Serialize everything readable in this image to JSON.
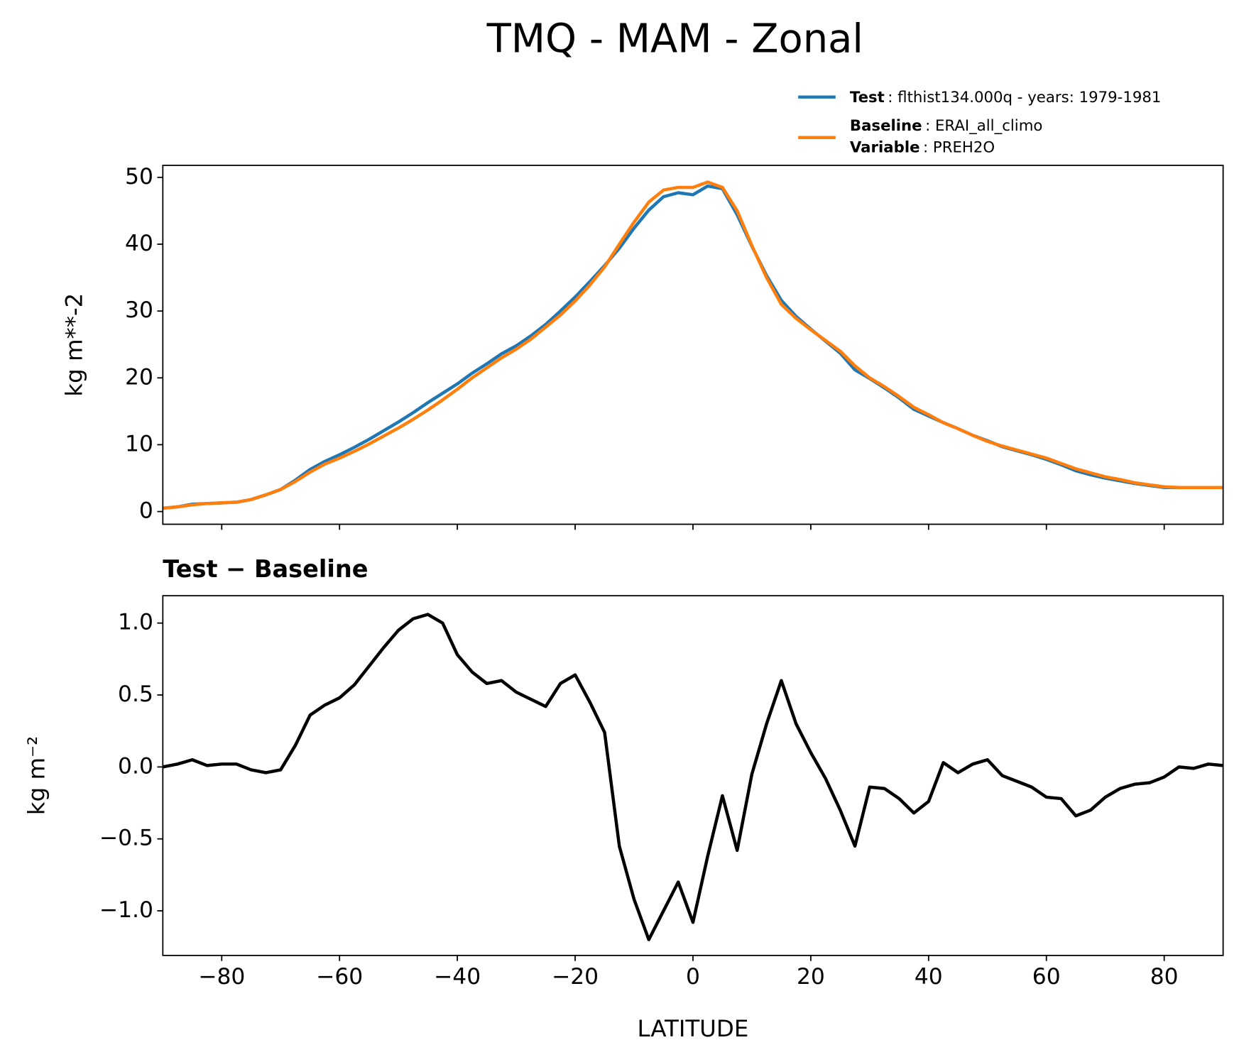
{
  "title": "TMQ - MAM - Zonal",
  "chart_data": [
    {
      "type": "line",
      "ylabel": "kg m**-2",
      "x": [
        -90,
        -87.5,
        -85,
        -82.5,
        -80,
        -77.5,
        -75,
        -72.5,
        -70,
        -67.5,
        -65,
        -62.5,
        -60,
        -57.5,
        -55,
        -52.5,
        -50,
        -47.5,
        -45,
        -42.5,
        -40,
        -37.5,
        -35,
        -32.5,
        -30,
        -27.5,
        -25,
        -22.5,
        -20,
        -17.5,
        -15,
        -12.5,
        -10,
        -7.5,
        -5,
        -2.5,
        0,
        2.5,
        5,
        7.5,
        10,
        12.5,
        15,
        17.5,
        20,
        22.5,
        25,
        27.5,
        30,
        32.5,
        35,
        37.5,
        40,
        42.5,
        45,
        47.5,
        50,
        52.5,
        55,
        57.5,
        60,
        62.5,
        65,
        67.5,
        70,
        72.5,
        75,
        77.5,
        80,
        82.5,
        85,
        87.5,
        90
      ],
      "series": [
        {
          "name": "Test",
          "description": ": flthist134.000q - years: 1979-1981",
          "color": "#1f77b4",
          "values": [
            0.5,
            0.7,
            1.1,
            1.2,
            1.3,
            1.4,
            1.8,
            2.5,
            3.3,
            4.7,
            6.3,
            7.5,
            8.5,
            9.6,
            10.8,
            12.1,
            13.4,
            14.8,
            16.3,
            17.7,
            19.1,
            20.7,
            22.1,
            23.6,
            24.8,
            26.3,
            28.0,
            30.0,
            32.1,
            34.4,
            36.8,
            39.4,
            42.4,
            45.1,
            47.1,
            47.7,
            47.4,
            48.7,
            48.3,
            44.4,
            39.7,
            35.3,
            31.6,
            29.2,
            27.3,
            25.5,
            23.7,
            21.2,
            19.9,
            18.5,
            17.0,
            15.3,
            14.3,
            13.3,
            12.4,
            11.4,
            10.6,
            9.7,
            9.1,
            8.5,
            7.8,
            7.0,
            6.1,
            5.5,
            5.0,
            4.6,
            4.2,
            3.9,
            3.6,
            3.6,
            3.6,
            3.6,
            3.6
          ]
        },
        {
          "name": "Baseline",
          "description": ": ERAI_all_climo",
          "color": "#ff7f0e",
          "values": [
            0.5,
            0.7,
            1.0,
            1.2,
            1.3,
            1.4,
            1.8,
            2.5,
            3.3,
            4.5,
            5.9,
            7.1,
            8.0,
            9.0,
            10.1,
            11.3,
            12.5,
            13.8,
            15.2,
            16.7,
            18.3,
            20.0,
            21.5,
            23.0,
            24.3,
            25.8,
            27.6,
            29.4,
            31.5,
            33.9,
            36.6,
            40.0,
            43.3,
            46.3,
            48.1,
            48.5,
            48.5,
            49.3,
            48.5,
            45.0,
            39.8,
            35.0,
            31.0,
            28.9,
            27.2,
            25.6,
            24.0,
            21.8,
            20.0,
            18.7,
            17.2,
            15.6,
            14.5,
            13.3,
            12.4,
            11.4,
            10.5,
            9.8,
            9.2,
            8.6,
            8.0,
            7.2,
            6.4,
            5.8,
            5.2,
            4.8,
            4.3,
            4.0,
            3.7,
            3.6,
            3.6,
            3.6,
            3.6
          ]
        }
      ],
      "variable_label": "Variable",
      "variable": ": PREH2O",
      "legend": "upper right",
      "xlim": [
        -90,
        90
      ],
      "xticks": [
        -80,
        -60,
        -40,
        -20,
        0,
        20,
        40,
        60,
        80
      ],
      "ylim": [
        -1.9,
        51.8
      ],
      "yticks": [
        0,
        10,
        20,
        30,
        40,
        50
      ]
    },
    {
      "type": "line",
      "title": "Test − Baseline",
      "ylabel": "kg m⁻²",
      "xlabel": "LATITUDE",
      "x": [
        -90,
        -87.5,
        -85,
        -82.5,
        -80,
        -77.5,
        -75,
        -72.5,
        -70,
        -67.5,
        -65,
        -62.5,
        -60,
        -57.5,
        -55,
        -52.5,
        -50,
        -47.5,
        -45,
        -42.5,
        -40,
        -37.5,
        -35,
        -32.5,
        -30,
        -27.5,
        -25,
        -22.5,
        -20,
        -17.5,
        -15,
        -12.5,
        -10,
        -7.5,
        -5,
        -2.5,
        0,
        2.5,
        5,
        7.5,
        10,
        12.5,
        15,
        17.5,
        20,
        22.5,
        25,
        27.5,
        30,
        32.5,
        35,
        37.5,
        40,
        42.5,
        45,
        47.5,
        50,
        52.5,
        55,
        57.5,
        60,
        62.5,
        65,
        67.5,
        70,
        72.5,
        75,
        77.5,
        80,
        82.5,
        85,
        87.5,
        90
      ],
      "color": "#000000",
      "values": [
        0.0,
        0.02,
        0.05,
        0.01,
        0.02,
        0.02,
        -0.02,
        -0.04,
        -0.02,
        0.15,
        0.36,
        0.43,
        0.48,
        0.57,
        0.7,
        0.83,
        0.95,
        1.03,
        1.06,
        1.0,
        0.78,
        0.66,
        0.58,
        0.6,
        0.52,
        0.47,
        0.42,
        0.58,
        0.64,
        0.45,
        0.24,
        -0.55,
        -0.92,
        -1.2,
        -1.0,
        -0.8,
        -1.08,
        -0.62,
        -0.2,
        -0.58,
        -0.05,
        0.3,
        0.6,
        0.3,
        0.1,
        -0.08,
        -0.3,
        -0.55,
        -0.14,
        -0.15,
        -0.22,
        -0.32,
        -0.24,
        0.03,
        -0.04,
        0.02,
        0.05,
        -0.06,
        -0.1,
        -0.14,
        -0.21,
        -0.22,
        -0.34,
        -0.3,
        -0.21,
        -0.15,
        -0.12,
        -0.11,
        -0.07,
        0.0,
        -0.01,
        0.02,
        0.01
      ],
      "xlim": [
        -90,
        90
      ],
      "xticks": [
        {
          "value": -80,
          "label": "−80"
        },
        {
          "value": -60,
          "label": "−60"
        },
        {
          "value": -40,
          "label": "−40"
        },
        {
          "value": -20,
          "label": "−20"
        },
        0,
        20,
        40,
        60,
        80
      ],
      "ylim": [
        -1.31,
        1.19
      ],
      "yticks": [
        {
          "value": -1,
          "label": "−1.0"
        },
        {
          "value": -0.5,
          "label": "−0.5"
        },
        {
          "value": 0,
          "label": "0.0"
        },
        {
          "value": 0.5,
          "label": "0.5"
        },
        {
          "value": 1,
          "label": "1.0"
        }
      ]
    }
  ]
}
